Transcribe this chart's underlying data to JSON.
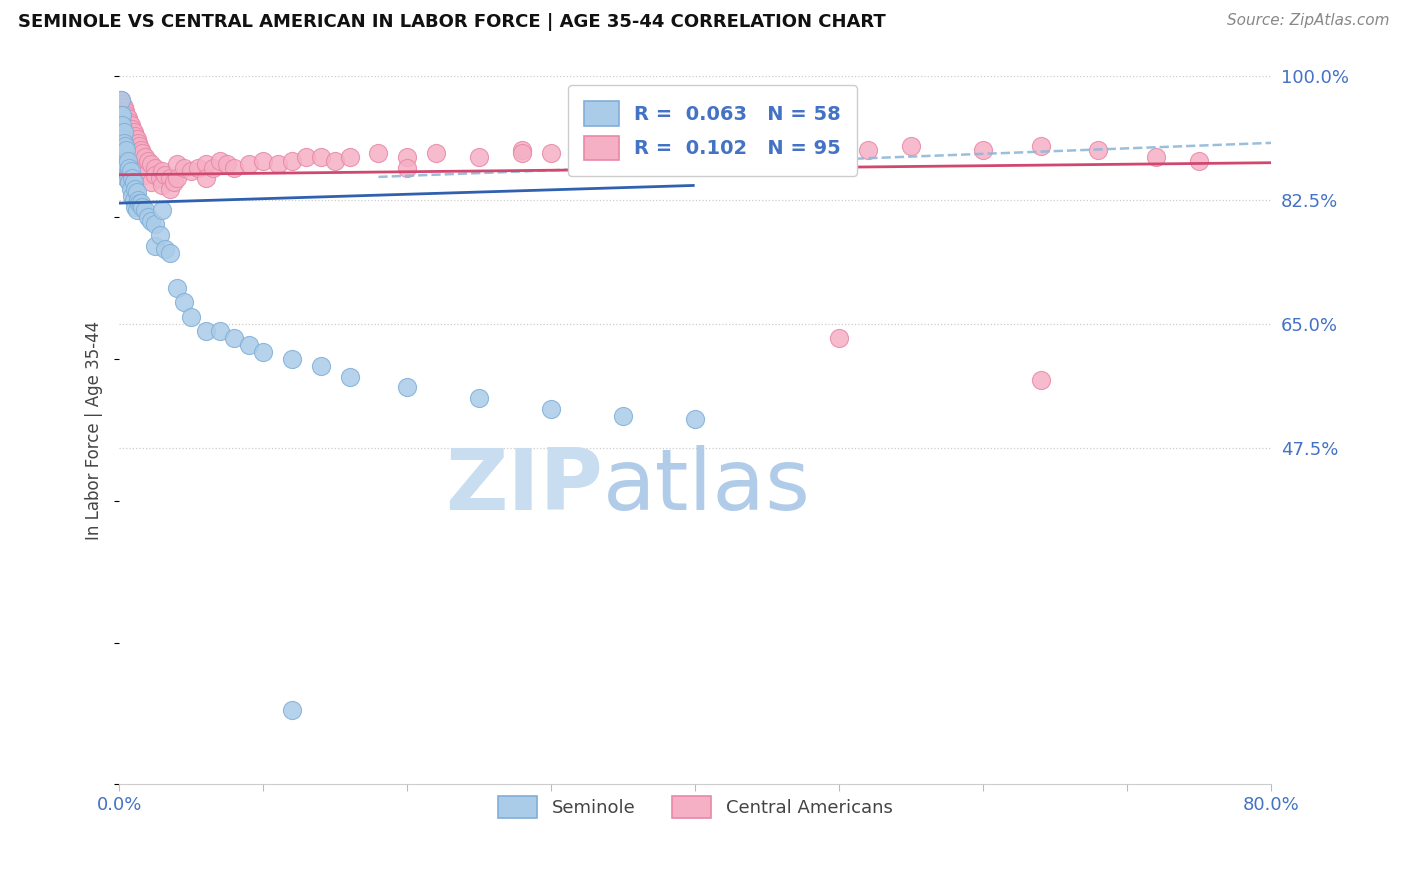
{
  "title": "SEMINOLE VS CENTRAL AMERICAN IN LABOR FORCE | AGE 35-44 CORRELATION CHART",
  "source": "Source: ZipAtlas.com",
  "ylabel": "In Labor Force | Age 35-44",
  "xlim": [
    0.0,
    0.8
  ],
  "ylim": [
    0.0,
    1.0
  ],
  "xtick_positions": [
    0.0,
    0.1,
    0.2,
    0.3,
    0.4,
    0.5,
    0.6,
    0.7,
    0.8
  ],
  "xticklabels": [
    "0.0%",
    "",
    "",
    "",
    "",
    "",
    "",
    "",
    "80.0%"
  ],
  "ytick_positions": [
    0.475,
    0.65,
    0.825,
    1.0
  ],
  "yticklabels": [
    "47.5%",
    "65.0%",
    "82.5%",
    "100.0%"
  ],
  "r_seminole": 0.063,
  "n_seminole": 58,
  "r_central": 0.102,
  "n_central": 95,
  "seminole_color": "#aacce8",
  "central_color": "#f5b0c5",
  "seminole_edge": "#80afd8",
  "central_edge": "#e888a8",
  "seminole_line_color": "#3060b0",
  "central_line_color": "#d04870",
  "dashed_line_color": "#90b8d8",
  "background_color": "#ffffff",
  "grid_color": "#cccccc",
  "title_color": "#111111",
  "axis_label_color": "#4472c4",
  "watermark_color": "#ddeaf7",
  "dot_size": 170
}
